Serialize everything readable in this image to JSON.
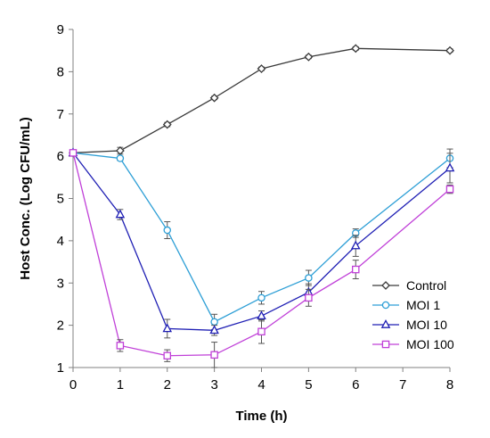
{
  "chart_data": {
    "type": "line",
    "title": "",
    "xlabel": "Time (h)",
    "ylabel": "Host Conc. (Log CFU/mL)",
    "xlim": [
      0,
      8
    ],
    "ylim": [
      1,
      9
    ],
    "x_ticks": [
      "0",
      "1",
      "2",
      "3",
      "4",
      "5",
      "6",
      "7",
      "8"
    ],
    "y_ticks": [
      "1",
      "2",
      "3",
      "4",
      "5",
      "6",
      "7",
      "8",
      "9"
    ],
    "grid": false,
    "legend_position": "bottom-right",
    "series": [
      {
        "name": "Control",
        "color": "#3a3a3a",
        "marker": "diamond",
        "x": [
          0,
          1,
          2,
          3,
          4,
          5,
          6,
          8
        ],
        "y": [
          6.08,
          6.13,
          6.75,
          7.38,
          8.07,
          8.35,
          8.55,
          8.5
        ],
        "err": [
          0.05,
          0.08,
          0.05,
          0.04,
          0.04,
          0.04,
          0.04,
          0.04
        ]
      },
      {
        "name": "MOI 1",
        "color": "#2e9fd6",
        "marker": "circle",
        "x": [
          0,
          1,
          2,
          3,
          4,
          5,
          6,
          8
        ],
        "y": [
          6.08,
          5.95,
          4.25,
          2.08,
          2.65,
          3.12,
          4.18,
          5.95
        ],
        "err": [
          0.05,
          0.05,
          0.2,
          0.18,
          0.15,
          0.18,
          0.1,
          0.22
        ]
      },
      {
        "name": "MOI 10",
        "color": "#1f1fb4",
        "marker": "triangle",
        "x": [
          0,
          1,
          2,
          3,
          4,
          5,
          6,
          8
        ],
        "y": [
          6.08,
          4.62,
          1.92,
          1.88,
          2.22,
          2.78,
          3.88,
          5.72
        ],
        "err": [
          0.05,
          0.12,
          0.22,
          0.12,
          0.12,
          0.2,
          0.25,
          0.35
        ]
      },
      {
        "name": "MOI 100",
        "color": "#c040d8",
        "marker": "square",
        "x": [
          0,
          1,
          2,
          3,
          4,
          5,
          6,
          8
        ],
        "y": [
          6.08,
          1.52,
          1.28,
          1.3,
          1.85,
          2.65,
          3.32,
          5.22
        ],
        "err": [
          0.05,
          0.14,
          0.14,
          0.3,
          0.28,
          0.2,
          0.22,
          0.1
        ]
      }
    ]
  }
}
